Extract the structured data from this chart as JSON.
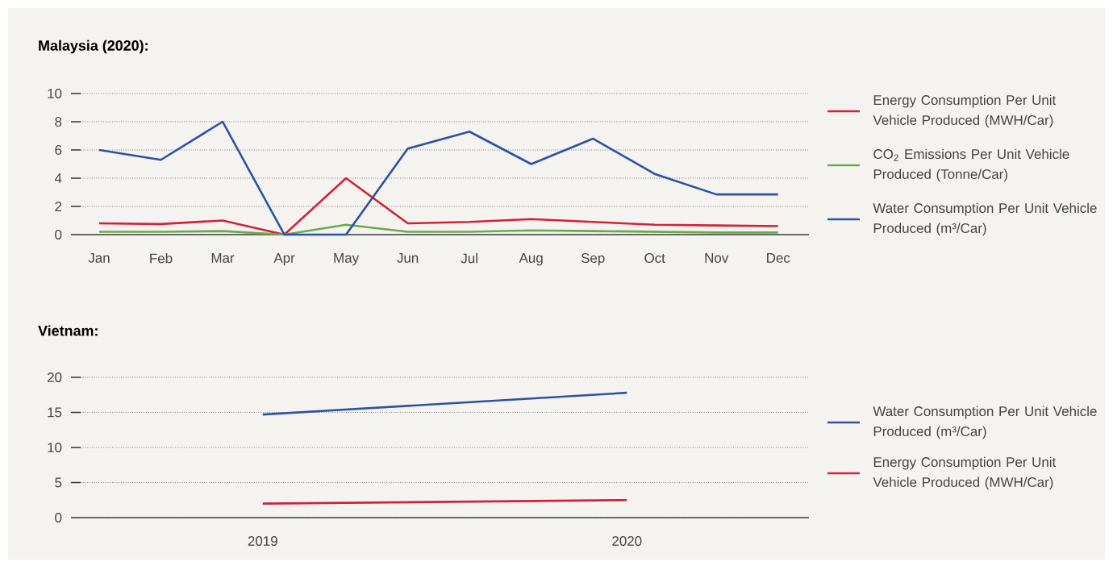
{
  "chart_data": [
    {
      "type": "line",
      "title": "Malaysia (2020):",
      "categories": [
        "Jan",
        "Feb",
        "Mar",
        "Apr",
        "May",
        "Jun",
        "Jul",
        "Aug",
        "Sep",
        "Oct",
        "Nov",
        "Dec"
      ],
      "series": [
        {
          "name": "Energy Consumption Per Unit Vehicle Produced (MWH/Car)",
          "color": "#d0223a",
          "values": [
            0.8,
            0.75,
            1.0,
            0,
            4.0,
            0.8,
            0.9,
            1.1,
            0.9,
            0.7,
            0.65,
            0.6
          ]
        },
        {
          "name": "CO$_{2}$ Emissions Per Unit Vehicle Produced (Tonne/Car)",
          "color": "#6aaa4b",
          "values": [
            0.2,
            0.2,
            0.25,
            0,
            0.7,
            0.2,
            0.2,
            0.3,
            0.25,
            0.2,
            0.15,
            0.15
          ]
        },
        {
          "name": "Water Consumption Per Unit Vehicle Produced (m³/Car)",
          "color": "#2e52a2",
          "values": [
            6.0,
            5.3,
            8.0,
            0,
            0,
            6.1,
            7.3,
            5.0,
            6.8,
            4.3,
            2.85,
            2.85
          ]
        }
      ],
      "ylim": [
        0,
        10
      ],
      "yticks": [
        0,
        2,
        4,
        6,
        8,
        10
      ],
      "grid": "y",
      "legend": "right"
    },
    {
      "type": "line",
      "title": "Vietnam:",
      "categories": [
        "2019",
        "2020"
      ],
      "series": [
        {
          "name": "Water Consumption Per Unit Vehicle Produced (m³/Car)",
          "color": "#2e52a2",
          "values": [
            14.7,
            17.8
          ]
        },
        {
          "name": "Energy Consumption Per Unit Vehicle Produced (MWH/Car)",
          "color": "#d0223a",
          "values": [
            2.0,
            2.5
          ]
        }
      ],
      "ylim": [
        0,
        20
      ],
      "yticks": [
        0,
        5,
        10,
        15,
        20
      ],
      "grid": "y",
      "legend": "right"
    }
  ]
}
